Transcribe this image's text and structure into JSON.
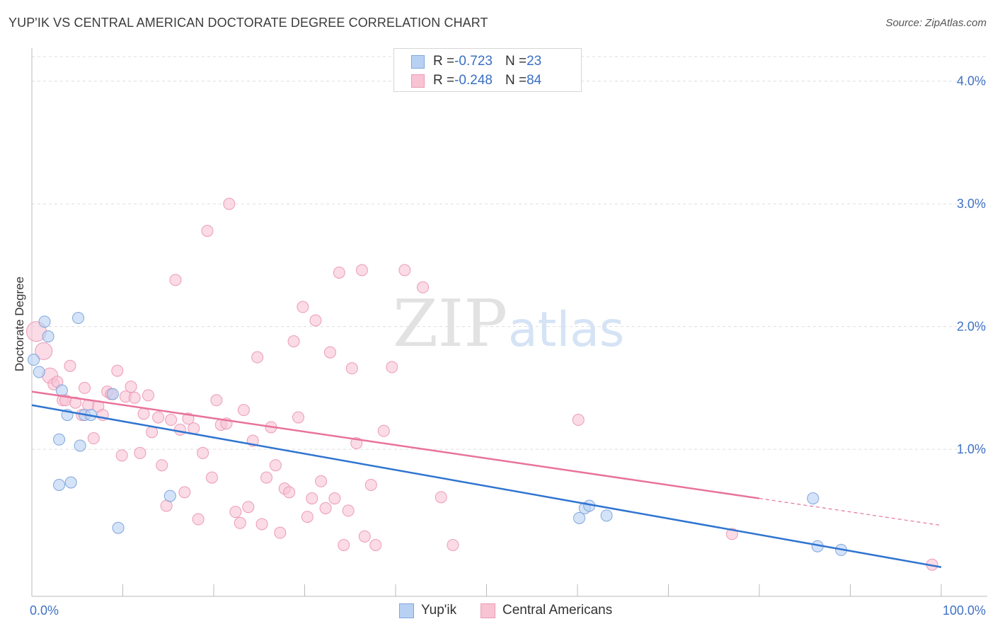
{
  "header": {
    "title": "YUP'IK VS CENTRAL AMERICAN DOCTORATE DEGREE CORRELATION CHART",
    "source": "Source: ZipAtlas.com"
  },
  "watermark": {
    "zip": "ZIP",
    "atlas": "atlas"
  },
  "legend_top": {
    "rows": [
      {
        "r_label": "R = ",
        "r_value": "-0.723",
        "n_label": "N = ",
        "n_value": "23"
      },
      {
        "r_label": "R = ",
        "r_value": "-0.248",
        "n_label": "N = ",
        "n_value": "84"
      }
    ]
  },
  "legend_bottom": {
    "items": [
      "Yup'ik",
      "Central Americans"
    ]
  },
  "colors": {
    "blue_fill": "#b8d1f3",
    "blue_stroke": "#7fa6dc",
    "blue_line": "#2f74d0",
    "pink_fill": "#f8c3d3",
    "pink_stroke": "#ec9bb6",
    "pink_line": "#e8739a",
    "axis_text": "#3f72c5",
    "grid": "#dddddd",
    "axis": "#bbbbbb"
  },
  "chart_data": {
    "type": "scatter",
    "title": "YUP'IK VS CENTRAL AMERICAN DOCTORATE DEGREE CORRELATION CHART",
    "xlabel": "",
    "ylabel": "Doctorate Degree",
    "xlim": [
      0,
      100
    ],
    "ylim": [
      -0.1,
      4.2
    ],
    "x_tick_labels": [
      "0.0%",
      "100.0%"
    ],
    "y_ticks": [
      1.0,
      2.0,
      3.0,
      4.0
    ],
    "y_tick_labels": [
      "1.0%",
      "2.0%",
      "3.0%",
      "4.0%"
    ],
    "grid": true,
    "series": [
      {
        "name": "Yup'ik",
        "color": "#b8d1f3",
        "r": -0.723,
        "n": 23,
        "trend": {
          "x0": 0,
          "y0": 1.36,
          "x1": 100,
          "y1": 0.04
        },
        "points": [
          {
            "x": 0.2,
            "y": 1.73
          },
          {
            "x": 0.8,
            "y": 1.63
          },
          {
            "x": 1.4,
            "y": 2.04
          },
          {
            "x": 1.8,
            "y": 1.92
          },
          {
            "x": 3.0,
            "y": 0.71
          },
          {
            "x": 3.0,
            "y": 1.08
          },
          {
            "x": 3.3,
            "y": 1.48
          },
          {
            "x": 3.9,
            "y": 1.28
          },
          {
            "x": 4.3,
            "y": 0.73
          },
          {
            "x": 5.1,
            "y": 2.07
          },
          {
            "x": 5.3,
            "y": 1.03
          },
          {
            "x": 5.8,
            "y": 1.28
          },
          {
            "x": 6.5,
            "y": 1.28
          },
          {
            "x": 8.9,
            "y": 1.45
          },
          {
            "x": 9.5,
            "y": 0.36
          },
          {
            "x": 15.2,
            "y": 0.62
          },
          {
            "x": 60.2,
            "y": 0.44
          },
          {
            "x": 60.8,
            "y": 0.52
          },
          {
            "x": 61.3,
            "y": 0.54
          },
          {
            "x": 63.2,
            "y": 0.46
          },
          {
            "x": 85.9,
            "y": 0.6
          },
          {
            "x": 86.4,
            "y": 0.21
          },
          {
            "x": 89.0,
            "y": 0.18
          }
        ]
      },
      {
        "name": "Central Americans",
        "color": "#f8c3d3",
        "r": -0.248,
        "n": 84,
        "trend": {
          "x0": 0,
          "y0": 1.47,
          "x1": 80,
          "y1": 0.6,
          "dashed_to_x": 100,
          "dashed_to_y": 0.38
        },
        "points": [
          {
            "x": 0.5,
            "y": 1.96
          },
          {
            "x": 1.3,
            "y": 1.8
          },
          {
            "x": 2.0,
            "y": 1.6
          },
          {
            "x": 2.4,
            "y": 1.53
          },
          {
            "x": 2.8,
            "y": 1.55
          },
          {
            "x": 3.4,
            "y": 1.4
          },
          {
            "x": 3.7,
            "y": 1.4
          },
          {
            "x": 4.2,
            "y": 1.68
          },
          {
            "x": 4.8,
            "y": 1.38
          },
          {
            "x": 5.5,
            "y": 1.28
          },
          {
            "x": 5.8,
            "y": 1.5
          },
          {
            "x": 6.2,
            "y": 1.36
          },
          {
            "x": 6.8,
            "y": 1.09
          },
          {
            "x": 7.3,
            "y": 1.35
          },
          {
            "x": 7.8,
            "y": 1.28
          },
          {
            "x": 8.3,
            "y": 1.47
          },
          {
            "x": 8.7,
            "y": 1.45
          },
          {
            "x": 9.4,
            "y": 1.64
          },
          {
            "x": 9.9,
            "y": 0.95
          },
          {
            "x": 10.3,
            "y": 1.43
          },
          {
            "x": 10.9,
            "y": 1.51
          },
          {
            "x": 11.3,
            "y": 1.42
          },
          {
            "x": 11.9,
            "y": 0.97
          },
          {
            "x": 12.3,
            "y": 1.29
          },
          {
            "x": 12.8,
            "y": 1.44
          },
          {
            "x": 13.2,
            "y": 1.14
          },
          {
            "x": 13.9,
            "y": 1.26
          },
          {
            "x": 14.3,
            "y": 0.87
          },
          {
            "x": 14.8,
            "y": 0.54
          },
          {
            "x": 15.3,
            "y": 1.24
          },
          {
            "x": 15.8,
            "y": 2.38
          },
          {
            "x": 16.3,
            "y": 1.16
          },
          {
            "x": 16.8,
            "y": 0.65
          },
          {
            "x": 17.2,
            "y": 1.25
          },
          {
            "x": 17.8,
            "y": 1.17
          },
          {
            "x": 18.3,
            "y": 0.43
          },
          {
            "x": 18.8,
            "y": 0.97
          },
          {
            "x": 19.3,
            "y": 2.78
          },
          {
            "x": 19.8,
            "y": 0.77
          },
          {
            "x": 20.3,
            "y": 1.4
          },
          {
            "x": 20.8,
            "y": 1.2
          },
          {
            "x": 21.4,
            "y": 1.21
          },
          {
            "x": 21.7,
            "y": 3.0
          },
          {
            "x": 22.4,
            "y": 0.49
          },
          {
            "x": 22.9,
            "y": 0.4
          },
          {
            "x": 23.3,
            "y": 1.32
          },
          {
            "x": 23.8,
            "y": 0.53
          },
          {
            "x": 24.3,
            "y": 1.07
          },
          {
            "x": 24.8,
            "y": 1.75
          },
          {
            "x": 25.3,
            "y": 0.39
          },
          {
            "x": 25.8,
            "y": 0.77
          },
          {
            "x": 26.3,
            "y": 1.18
          },
          {
            "x": 26.8,
            "y": 0.87
          },
          {
            "x": 27.3,
            "y": 0.32
          },
          {
            "x": 27.8,
            "y": 0.68
          },
          {
            "x": 28.3,
            "y": 0.65
          },
          {
            "x": 28.8,
            "y": 1.88
          },
          {
            "x": 29.3,
            "y": 1.26
          },
          {
            "x": 29.8,
            "y": 2.16
          },
          {
            "x": 30.3,
            "y": 0.45
          },
          {
            "x": 30.8,
            "y": 0.6
          },
          {
            "x": 31.2,
            "y": 2.05
          },
          {
            "x": 31.8,
            "y": 0.74
          },
          {
            "x": 32.3,
            "y": 0.52
          },
          {
            "x": 32.8,
            "y": 1.79
          },
          {
            "x": 33.3,
            "y": 0.6
          },
          {
            "x": 33.8,
            "y": 2.44
          },
          {
            "x": 34.3,
            "y": 0.22
          },
          {
            "x": 34.8,
            "y": 0.5
          },
          {
            "x": 35.2,
            "y": 1.66
          },
          {
            "x": 35.7,
            "y": 1.05
          },
          {
            "x": 36.3,
            "y": 2.46
          },
          {
            "x": 36.6,
            "y": 0.29
          },
          {
            "x": 37.3,
            "y": 0.71
          },
          {
            "x": 37.8,
            "y": 0.22
          },
          {
            "x": 38.7,
            "y": 1.15
          },
          {
            "x": 39.6,
            "y": 1.67
          },
          {
            "x": 41.0,
            "y": 2.46
          },
          {
            "x": 43.0,
            "y": 2.32
          },
          {
            "x": 45.0,
            "y": 0.61
          },
          {
            "x": 46.3,
            "y": 0.22
          },
          {
            "x": 60.1,
            "y": 1.24
          },
          {
            "x": 77.0,
            "y": 0.31
          },
          {
            "x": 99.0,
            "y": 0.06
          }
        ]
      }
    ]
  }
}
